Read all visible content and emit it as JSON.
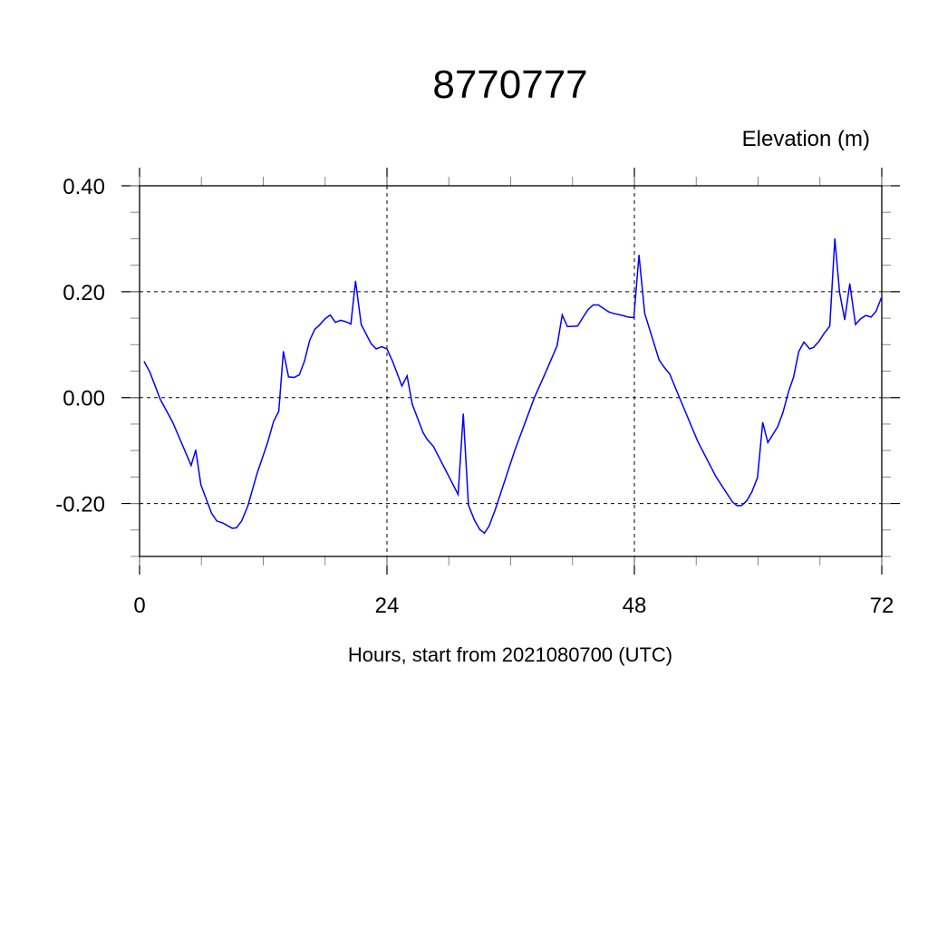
{
  "chart_data": {
    "type": "line",
    "title": "8770777",
    "subtitle": "Elevation (m)",
    "xlabel": "Hours, start from 2021080700 (UTC)",
    "ylabel": "",
    "xlim": [
      0,
      72
    ],
    "ylim": [
      -0.3,
      0.4
    ],
    "x_ticks": [
      0,
      24,
      48,
      72
    ],
    "x_tick_labels": [
      "0",
      "24",
      "48",
      "72"
    ],
    "x_minor_step": 6,
    "y_ticks": [
      0.4,
      0.2,
      0.0,
      -0.2
    ],
    "y_tick_labels": [
      "0.40",
      "0.20",
      "0.00",
      "-0.20"
    ],
    "y_minor_step": 0.05,
    "grid": "dashed at major ticks",
    "colors": {
      "line": "#0000ff",
      "axis": "#000000",
      "grid": "#000000"
    },
    "series": [
      {
        "x": [
          0.45,
          1.0,
          2.0,
          3.2,
          5.0,
          5.45,
          5.95,
          7.0,
          7.5,
          8.1,
          9.0,
          9.4,
          9.9,
          10.5,
          11.4,
          12.4,
          13.0,
          13.5,
          13.95,
          14.45,
          15.0,
          15.5,
          16.0,
          16.5,
          17.0,
          17.4,
          18.0,
          18.5,
          19.0,
          19.5,
          19.9,
          20.5,
          20.95,
          21.5,
          22.45,
          22.95,
          23.5,
          24.0,
          24.55,
          25.45,
          25.95,
          26.46,
          27.5,
          27.9,
          28.5,
          30.9,
          31.4,
          31.9,
          32.5,
          33.0,
          33.45,
          33.9,
          34.5,
          36.4,
          38.3,
          39.4,
          40.5,
          41.0,
          41.5,
          42.5,
          43.0,
          43.5,
          44.0,
          44.5,
          45.5,
          45.95,
          46.7,
          47.4,
          47.95,
          48.45,
          49.0,
          50.4,
          50.9,
          51.45,
          51.9,
          54.15,
          55.9,
          57.5,
          57.95,
          58.4,
          58.9,
          59.4,
          59.95,
          60.45,
          60.95,
          61.9,
          62.4,
          62.95,
          63.45,
          63.95,
          64.45,
          65.0,
          65.4,
          65.9,
          66.4,
          66.95,
          67.45,
          67.9,
          68.4,
          68.9,
          69.45,
          69.95,
          70.45,
          70.96,
          71.45,
          71.95
        ],
        "y": [
          0.068,
          0.048,
          -0.003,
          -0.046,
          -0.128,
          -0.099,
          -0.165,
          -0.219,
          -0.233,
          -0.237,
          -0.247,
          -0.246,
          -0.233,
          -0.205,
          -0.143,
          -0.086,
          -0.045,
          -0.026,
          0.087,
          0.039,
          0.038,
          0.043,
          0.069,
          0.108,
          0.129,
          0.136,
          0.149,
          0.156,
          0.142,
          0.146,
          0.144,
          0.139,
          0.22,
          0.138,
          0.102,
          0.092,
          0.096,
          0.092,
          0.068,
          0.022,
          0.041,
          -0.013,
          -0.066,
          -0.079,
          -0.092,
          -0.183,
          -0.031,
          -0.203,
          -0.232,
          -0.249,
          -0.256,
          -0.243,
          -0.212,
          -0.1,
          0.0,
          0.048,
          0.098,
          0.156,
          0.134,
          0.135,
          0.151,
          0.166,
          0.175,
          0.175,
          0.162,
          0.159,
          0.156,
          0.152,
          0.151,
          0.269,
          0.159,
          0.071,
          0.057,
          0.044,
          0.022,
          -0.083,
          -0.149,
          -0.197,
          -0.204,
          -0.204,
          -0.195,
          -0.178,
          -0.151,
          -0.047,
          -0.085,
          -0.055,
          -0.029,
          0.011,
          0.039,
          0.087,
          0.105,
          0.092,
          0.095,
          0.106,
          0.121,
          0.135,
          0.3,
          0.199,
          0.147,
          0.215,
          0.138,
          0.149,
          0.155,
          0.152,
          0.163,
          0.188
        ]
      }
    ]
  }
}
